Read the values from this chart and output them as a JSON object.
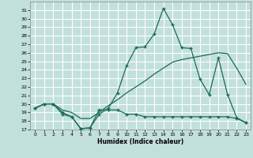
{
  "xlabel": "Humidex (Indice chaleur)",
  "background_color": "#c2e0dc",
  "grid_color": "#ffffff",
  "line_color": "#1a6b5a",
  "xlim": [
    -0.5,
    23.5
  ],
  "ylim": [
    17,
    32
  ],
  "yticks": [
    17,
    18,
    19,
    20,
    21,
    22,
    23,
    24,
    25,
    26,
    27,
    28,
    29,
    30,
    31
  ],
  "xticks": [
    0,
    1,
    2,
    3,
    4,
    5,
    6,
    7,
    8,
    9,
    10,
    11,
    12,
    13,
    14,
    15,
    16,
    17,
    18,
    19,
    20,
    21,
    22,
    23
  ],
  "line1_x": [
    0,
    1,
    2,
    3,
    4,
    5,
    6,
    7,
    8,
    9,
    10,
    11,
    12,
    13,
    14,
    15,
    16,
    17,
    18,
    19,
    20,
    21,
    22,
    23
  ],
  "line1_y": [
    19.5,
    20.0,
    20.0,
    19.0,
    18.5,
    17.1,
    17.2,
    18.8,
    19.5,
    21.3,
    24.5,
    26.6,
    26.7,
    28.2,
    31.2,
    29.3,
    26.6,
    26.5,
    22.9,
    21.1,
    25.4,
    21.1,
    18.4,
    17.8
  ],
  "line2_x": [
    0,
    1,
    2,
    3,
    4,
    5,
    6,
    7,
    8,
    9,
    10,
    11,
    12,
    13,
    14,
    15,
    16,
    17,
    18,
    19,
    20,
    21,
    22,
    23
  ],
  "line2_y": [
    19.5,
    20.0,
    20.0,
    18.8,
    18.5,
    17.1,
    17.2,
    19.3,
    19.3,
    19.3,
    18.8,
    18.8,
    18.5,
    18.5,
    18.5,
    18.5,
    18.5,
    18.5,
    18.5,
    18.5,
    18.5,
    18.5,
    18.3,
    17.8
  ],
  "line3_x": [
    0,
    1,
    2,
    3,
    4,
    5,
    6,
    7,
    8,
    9,
    10,
    11,
    12,
    13,
    14,
    15,
    16,
    17,
    18,
    19,
    20,
    21,
    22,
    23
  ],
  "line3_y": [
    19.5,
    20.0,
    20.0,
    19.3,
    19.0,
    18.3,
    18.3,
    19.0,
    19.8,
    20.5,
    21.3,
    22.0,
    22.7,
    23.5,
    24.2,
    24.9,
    25.2,
    25.4,
    25.6,
    25.8,
    26.0,
    25.9,
    24.2,
    22.3
  ]
}
